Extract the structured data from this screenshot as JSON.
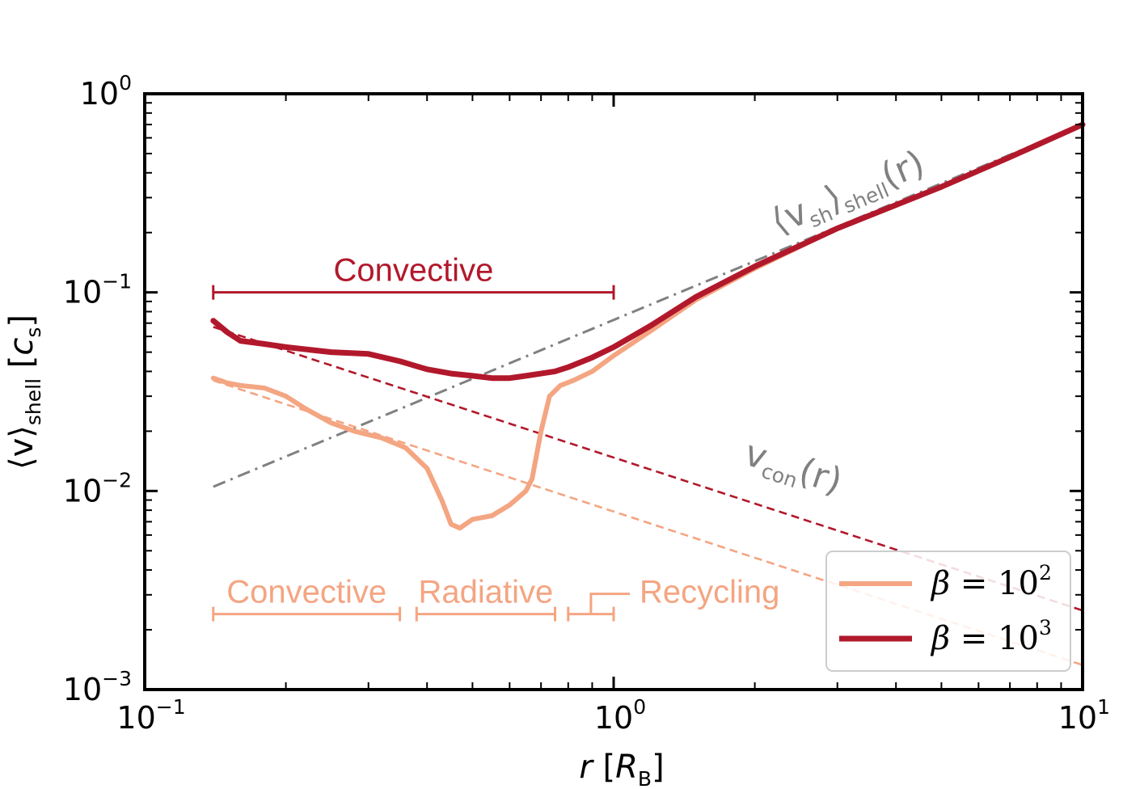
{
  "chart_data": {
    "type": "line",
    "xscale": "log",
    "yscale": "log",
    "xlim": [
      0.1,
      10
    ],
    "ylim": [
      0.001,
      1
    ],
    "xlabel": {
      "var": "r",
      "unit": "R",
      "unit_sub": "B"
    },
    "ylabel": {
      "main": "⟨v⟩",
      "sub": "shell",
      "unit": "c",
      "unit_sub": "s"
    },
    "xticks": [
      {
        "value": 0.1,
        "base": "10",
        "exp": "−1"
      },
      {
        "value": 1,
        "base": "10",
        "exp": "0"
      },
      {
        "value": 10,
        "base": "10",
        "exp": "1"
      }
    ],
    "yticks": [
      {
        "value": 0.001,
        "base": "10",
        "exp": "−3"
      },
      {
        "value": 0.01,
        "base": "10",
        "exp": "−2"
      },
      {
        "value": 0.1,
        "base": "10",
        "exp": "−1"
      },
      {
        "value": 1,
        "base": "10",
        "exp": "0"
      }
    ],
    "colors": {
      "beta2": "#f4a582",
      "beta3": "#b2182b",
      "gray": "#808080"
    },
    "series": [
      {
        "name": "β = 10^2",
        "legend": {
          "lhs": "β",
          "base": "10",
          "exp": "2"
        },
        "color": "#f4a582",
        "x": [
          0.14,
          0.15,
          0.16,
          0.18,
          0.2,
          0.22,
          0.25,
          0.28,
          0.32,
          0.36,
          0.4,
          0.43,
          0.45,
          0.47,
          0.5,
          0.55,
          0.6,
          0.65,
          0.67,
          0.7,
          0.73,
          0.77,
          0.82,
          0.9,
          1.0,
          1.2,
          1.5,
          2,
          3,
          5,
          7,
          10
        ],
        "values": [
          0.037,
          0.035,
          0.034,
          0.033,
          0.03,
          0.026,
          0.022,
          0.02,
          0.0185,
          0.0165,
          0.013,
          0.009,
          0.0068,
          0.0065,
          0.0072,
          0.0075,
          0.0085,
          0.01,
          0.0115,
          0.02,
          0.03,
          0.034,
          0.036,
          0.04,
          0.048,
          0.064,
          0.092,
          0.132,
          0.21,
          0.34,
          0.48,
          0.7
        ]
      },
      {
        "name": "β = 10^3",
        "legend": {
          "lhs": "β",
          "base": "10",
          "exp": "3"
        },
        "color": "#b2182b",
        "x": [
          0.14,
          0.15,
          0.16,
          0.18,
          0.2,
          0.25,
          0.3,
          0.35,
          0.4,
          0.45,
          0.5,
          0.55,
          0.6,
          0.65,
          0.7,
          0.75,
          0.8,
          0.9,
          1.0,
          1.2,
          1.5,
          2,
          3,
          5,
          7,
          10
        ],
        "values": [
          0.072,
          0.063,
          0.057,
          0.055,
          0.053,
          0.05,
          0.049,
          0.045,
          0.041,
          0.039,
          0.038,
          0.037,
          0.037,
          0.038,
          0.039,
          0.04,
          0.042,
          0.047,
          0.053,
          0.068,
          0.095,
          0.135,
          0.21,
          0.34,
          0.48,
          0.7
        ]
      }
    ],
    "reference_lines": [
      {
        "name": "v_sh shell",
        "style": "dashdot",
        "color": "#808080",
        "x": [
          0.14,
          10
        ],
        "values": [
          0.0105,
          0.7
        ]
      },
      {
        "name": "v_con beta3",
        "style": "dashed",
        "color": "#b2182b",
        "x": [
          0.14,
          10
        ],
        "values": [
          0.067,
          0.0025
        ]
      },
      {
        "name": "v_con beta2",
        "style": "dashed",
        "color": "#f4a582",
        "x": [
          0.14,
          10
        ],
        "values": [
          0.036,
          0.00133
        ]
      }
    ],
    "curve_labels": [
      {
        "main": "⟨v",
        "sub": "sh",
        "close": "⟩",
        "sub2": "shell",
        "arg": "(r)"
      },
      {
        "main": "v",
        "sub": "con",
        "arg": "(r)"
      }
    ],
    "regions": [
      {
        "label": "Convective",
        "x_start": 0.14,
        "x_end": 1.0,
        "y": 0.1,
        "color": "#b2182b"
      },
      {
        "label": "Convective",
        "x_start": 0.14,
        "x_end": 0.35,
        "y": 0.0024,
        "color": "#f4a582"
      },
      {
        "label": "Radiative",
        "x_start": 0.38,
        "x_end": 0.75,
        "y": 0.0024,
        "color": "#f4a582"
      },
      {
        "label": "Recycling",
        "x_start": 0.8,
        "x_end": 1.0,
        "y": 0.0024,
        "color": "#f4a582"
      }
    ],
    "legend_position": "lower-right"
  }
}
